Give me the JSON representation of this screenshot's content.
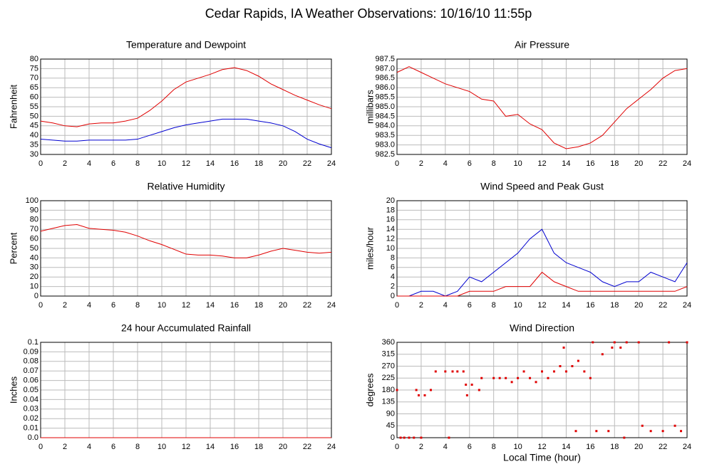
{
  "title": "Cedar Rapids, IA Weather Observations: 10/16/10 11:55p",
  "chart_data": [
    {
      "type": "line",
      "title": "Temperature and Dewpoint",
      "ylabel": "Fahrenheit",
      "x": [
        0,
        1,
        2,
        3,
        4,
        5,
        6,
        7,
        8,
        9,
        10,
        11,
        12,
        13,
        14,
        15,
        16,
        17,
        18,
        19,
        20,
        21,
        22,
        23,
        24
      ],
      "series": [
        {
          "name": "Temperature",
          "color": "#e00000",
          "values": [
            47.5,
            46.5,
            45,
            44.5,
            46,
            46.5,
            46.5,
            47.5,
            49,
            53,
            58,
            64,
            68,
            70,
            72,
            74.5,
            75.5,
            74,
            71,
            67,
            64,
            61,
            58.5,
            56,
            54
          ]
        },
        {
          "name": "Dewpoint",
          "color": "#0000d0",
          "values": [
            38,
            37.5,
            37,
            37,
            37.5,
            37.5,
            37.5,
            37.5,
            38,
            40,
            42,
            44,
            45.5,
            46.5,
            47.5,
            48.5,
            48.5,
            48.5,
            47.5,
            46.5,
            45,
            42,
            38,
            35.5,
            33.5
          ]
        }
      ],
      "xlim": [
        0,
        24
      ],
      "xticks": [
        0,
        2,
        4,
        6,
        8,
        10,
        12,
        14,
        16,
        18,
        20,
        22,
        24
      ],
      "ylim": [
        30,
        80
      ],
      "yticks": [
        30,
        35,
        40,
        45,
        50,
        55,
        60,
        65,
        70,
        75,
        80
      ],
      "grid": true
    },
    {
      "type": "line",
      "title": "Air Pressure",
      "ylabel": "millibars",
      "x": [
        0,
        1,
        2,
        3,
        4,
        5,
        6,
        7,
        8,
        9,
        10,
        11,
        12,
        13,
        14,
        15,
        16,
        17,
        18,
        19,
        20,
        21,
        22,
        23,
        24
      ],
      "series": [
        {
          "name": "Pressure",
          "color": "#e00000",
          "values": [
            986.8,
            987.1,
            986.8,
            986.5,
            986.2,
            986.0,
            985.8,
            985.4,
            985.3,
            984.5,
            984.6,
            984.1,
            983.8,
            983.1,
            982.8,
            982.9,
            983.1,
            983.5,
            984.2,
            984.9,
            985.4,
            985.9,
            986.5,
            986.9,
            987.0
          ]
        }
      ],
      "xlim": [
        0,
        24
      ],
      "xticks": [
        0,
        2,
        4,
        6,
        8,
        10,
        12,
        14,
        16,
        18,
        20,
        22,
        24
      ],
      "ylim": [
        982.5,
        987.5
      ],
      "yticks": [
        {
          "value": 982.5,
          "label": "982.5"
        },
        {
          "value": 983,
          "label": "983.0"
        },
        {
          "value": 983.5,
          "label": "983.5"
        },
        {
          "value": 984,
          "label": "984.0"
        },
        {
          "value": 984.5,
          "label": "984.5"
        },
        {
          "value": 985,
          "label": "985.0"
        },
        {
          "value": 985.5,
          "label": "985.5"
        },
        {
          "value": 986,
          "label": "986.0"
        },
        {
          "value": 986.5,
          "label": "986.5"
        },
        {
          "value": 987,
          "label": "987.0"
        },
        {
          "value": 987.5,
          "label": "987.5"
        }
      ],
      "grid": true
    },
    {
      "type": "line",
      "title": "Relative Humidity",
      "ylabel": "Percent",
      "x": [
        0,
        1,
        2,
        3,
        4,
        5,
        6,
        7,
        8,
        9,
        10,
        11,
        12,
        13,
        14,
        15,
        16,
        17,
        18,
        19,
        20,
        21,
        22,
        23,
        24
      ],
      "series": [
        {
          "name": "Humidity",
          "color": "#e00000",
          "values": [
            68,
            71,
            74,
            75,
            71,
            70,
            69,
            67,
            63,
            58,
            54,
            49,
            44,
            43,
            43,
            42,
            40,
            40,
            43,
            47,
            50,
            48,
            46,
            45,
            46
          ]
        }
      ],
      "xlim": [
        0,
        24
      ],
      "xticks": [
        0,
        2,
        4,
        6,
        8,
        10,
        12,
        14,
        16,
        18,
        20,
        22,
        24
      ],
      "ylim": [
        0,
        100
      ],
      "yticks": [
        0,
        10,
        20,
        30,
        40,
        50,
        60,
        70,
        80,
        90,
        100
      ],
      "grid": true
    },
    {
      "type": "line",
      "title": "Wind Speed and Peak Gust",
      "ylabel": "miles/hour",
      "x": [
        0,
        1,
        2,
        3,
        4,
        5,
        6,
        7,
        8,
        9,
        10,
        11,
        12,
        13,
        14,
        15,
        16,
        17,
        18,
        19,
        20,
        21,
        22,
        23,
        24
      ],
      "series": [
        {
          "name": "Wind Speed",
          "color": "#0000d0",
          "values": [
            0,
            0,
            1,
            1,
            0,
            1,
            4,
            3,
            5,
            7,
            9,
            12,
            14,
            9,
            7,
            6,
            5,
            3,
            2,
            3,
            3,
            5,
            4,
            3,
            7
          ]
        },
        {
          "name": "Peak Gust",
          "color": "#e00000",
          "values": [
            0,
            0,
            0,
            0,
            0,
            0,
            1,
            1,
            1,
            2,
            2,
            2,
            5,
            3,
            2,
            1,
            1,
            1,
            1,
            1,
            1,
            1,
            1,
            1,
            2
          ]
        }
      ],
      "xlim": [
        0,
        24
      ],
      "xticks": [
        0,
        2,
        4,
        6,
        8,
        10,
        12,
        14,
        16,
        18,
        20,
        22,
        24
      ],
      "ylim": [
        0,
        20
      ],
      "yticks": [
        0,
        2,
        4,
        6,
        8,
        10,
        12,
        14,
        16,
        18,
        20
      ],
      "grid": true
    },
    {
      "type": "line",
      "title": "24 hour Accumulated Rainfall",
      "ylabel": "Inches",
      "x": [
        0,
        24
      ],
      "series": [
        {
          "name": "Rainfall",
          "color": "#e00000",
          "values": [
            0,
            0
          ]
        }
      ],
      "xlim": [
        0,
        24
      ],
      "xticks": [
        0,
        2,
        4,
        6,
        8,
        10,
        12,
        14,
        16,
        18,
        20,
        22,
        24
      ],
      "ylim": [
        0,
        0.1
      ],
      "yticks": [
        {
          "value": 0,
          "label": "0.0"
        },
        0.01,
        0.02,
        0.03,
        0.04,
        0.05,
        0.06,
        0.07,
        0.08,
        0.09,
        {
          "value": 0.1,
          "label": "0.1"
        }
      ],
      "grid": true
    },
    {
      "type": "scatter",
      "title": "Wind Direction",
      "ylabel": "degrees",
      "xlabel": "Local Time (hour)",
      "color": "#e00000",
      "x": [
        0,
        0.3,
        0.6,
        1,
        1.4,
        1.6,
        1.8,
        2,
        2.3,
        2.8,
        3.2,
        4,
        4.3,
        4.6,
        5,
        5.5,
        5.7,
        5.8,
        6.2,
        6.8,
        7,
        8,
        8.5,
        9,
        9.5,
        10,
        10.5,
        11,
        11.5,
        12,
        12.5,
        13,
        13.5,
        13.8,
        14,
        14.5,
        14.8,
        15,
        15.5,
        16,
        16.2,
        16.5,
        17,
        17.5,
        17.8,
        18,
        18.5,
        18.8,
        19,
        20,
        20.3,
        21,
        22,
        22.5,
        23,
        23.5,
        24
      ],
      "values": [
        180,
        0,
        0,
        0,
        0,
        180,
        160,
        0,
        160,
        180,
        250,
        250,
        0,
        250,
        250,
        250,
        200,
        160,
        200,
        180,
        225,
        225,
        225,
        225,
        210,
        225,
        250,
        225,
        210,
        250,
        225,
        250,
        270,
        340,
        250,
        270,
        25,
        290,
        250,
        225,
        360,
        25,
        315,
        25,
        340,
        360,
        340,
        0,
        360,
        360,
        45,
        25,
        25,
        360,
        45,
        25,
        360
      ],
      "xlim": [
        0,
        24
      ],
      "xticks": [
        0,
        2,
        4,
        6,
        8,
        10,
        12,
        14,
        16,
        18,
        20,
        22,
        24
      ],
      "ylim": [
        0,
        360
      ],
      "yticks": [
        0,
        45,
        90,
        135,
        180,
        225,
        270,
        315,
        360
      ],
      "grid": true
    }
  ]
}
